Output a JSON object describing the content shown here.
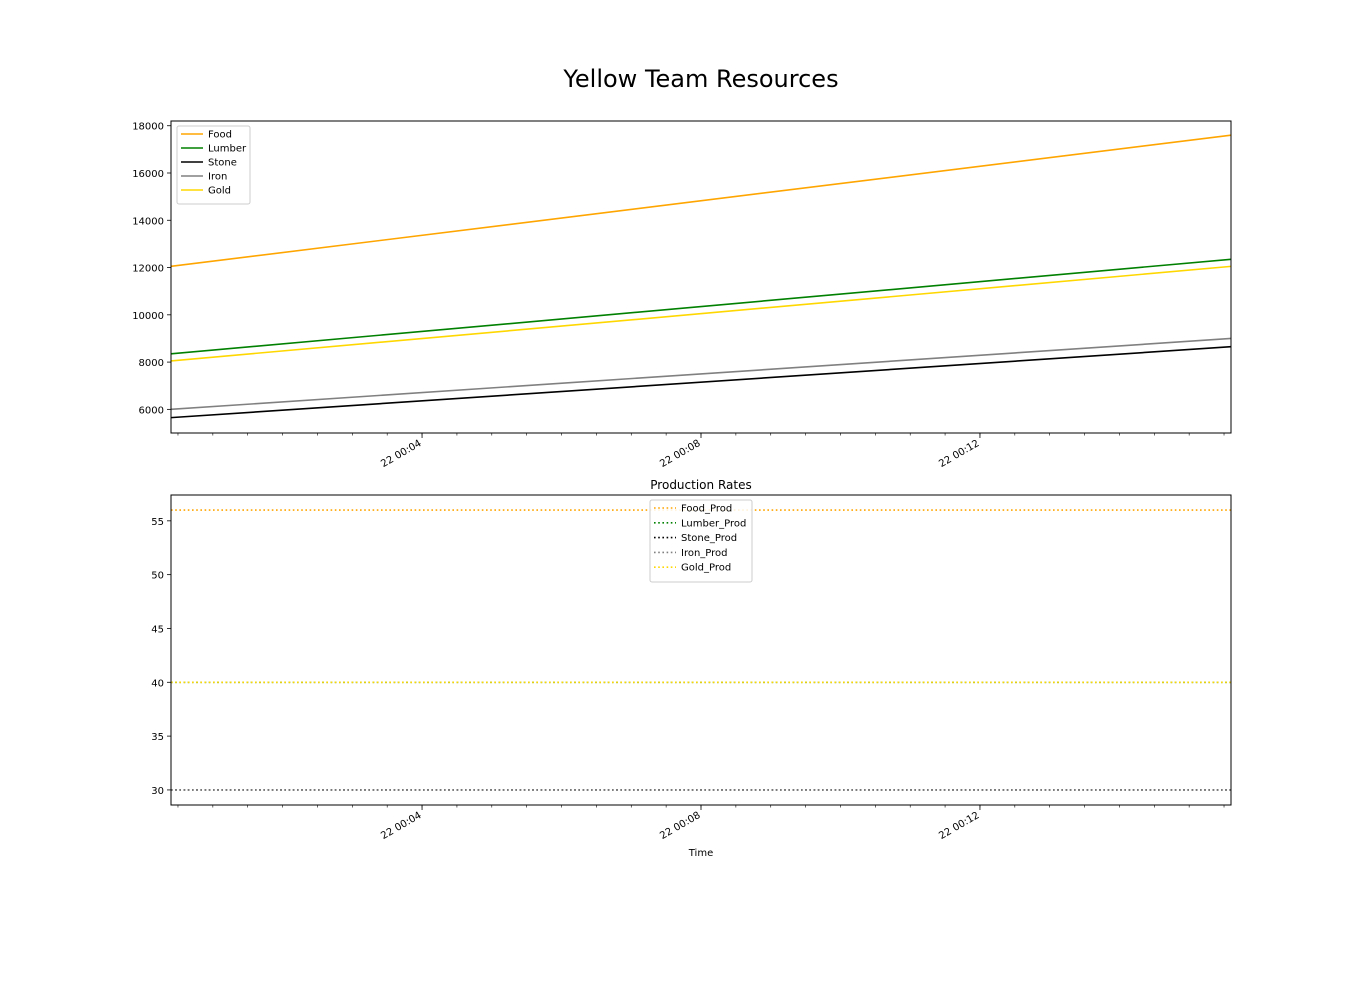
{
  "figure": {
    "title": "Yellow Team Resources"
  },
  "chart_data": [
    {
      "type": "line",
      "title": "",
      "xlabel": "",
      "ylabel": "",
      "x_start": "22 00:00:24",
      "x_end": "22 00:15:36",
      "xlim": [
        "22 00:00:24",
        "22 00:15:36"
      ],
      "ylim": [
        5000,
        18200
      ],
      "yticks": [
        6000,
        8000,
        10000,
        12000,
        14000,
        16000,
        18000
      ],
      "xticks": [
        {
          "label": "22 00:04",
          "value": "22 00:04:00"
        },
        {
          "label": "22 00:08",
          "value": "22 00:08:00"
        },
        {
          "label": "22 00:12",
          "value": "22 00:12:00"
        }
      ],
      "x_minor_tick_interval_seconds": 30,
      "grid": false,
      "legend": "upper-left",
      "series": [
        {
          "name": "Food",
          "color": "#ffa500",
          "style": "solid",
          "start": 12050,
          "end": 17600
        },
        {
          "name": "Lumber",
          "color": "#008000",
          "style": "solid",
          "start": 8350,
          "end": 12350
        },
        {
          "name": "Stone",
          "color": "#000000",
          "style": "solid",
          "start": 5650,
          "end": 8650
        },
        {
          "name": "Iron",
          "color": "#808080",
          "style": "solid",
          "start": 6000,
          "end": 9000
        },
        {
          "name": "Gold",
          "color": "#ffd700",
          "style": "solid",
          "start": 8050,
          "end": 12050
        }
      ]
    },
    {
      "type": "line",
      "title": "Production Rates",
      "xlabel": "Time",
      "ylabel": "",
      "x_start": "22 00:00:24",
      "x_end": "22 00:15:36",
      "xlim": [
        "22 00:00:24",
        "22 00:15:36"
      ],
      "ylim": [
        28.6,
        57.4
      ],
      "yticks": [
        30,
        35,
        40,
        45,
        50,
        55
      ],
      "xticks": [
        {
          "label": "22 00:04",
          "value": "22 00:04:00"
        },
        {
          "label": "22 00:08",
          "value": "22 00:08:00"
        },
        {
          "label": "22 00:12",
          "value": "22 00:12:00"
        }
      ],
      "x_minor_tick_interval_seconds": 30,
      "grid": false,
      "legend": "upper-center",
      "series": [
        {
          "name": "Food_Prod",
          "color": "#ffa500",
          "style": "dotted",
          "start": 56,
          "end": 56
        },
        {
          "name": "Lumber_Prod",
          "color": "#008000",
          "style": "dotted",
          "start": 40,
          "end": 40
        },
        {
          "name": "Stone_Prod",
          "color": "#000000",
          "style": "dotted",
          "start": 30,
          "end": 30
        },
        {
          "name": "Iron_Prod",
          "color": "#808080",
          "style": "dotted",
          "start": 30,
          "end": 30
        },
        {
          "name": "Gold_Prod",
          "color": "#ffd700",
          "style": "dotted",
          "start": 40,
          "end": 40
        }
      ]
    }
  ]
}
